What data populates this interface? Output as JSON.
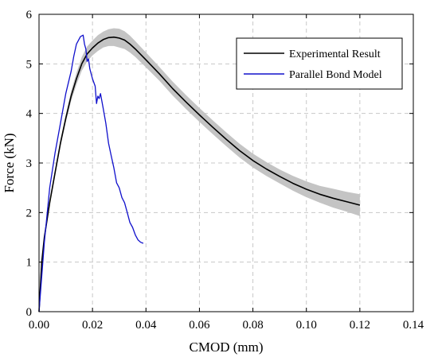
{
  "chart_data": {
    "type": "line",
    "xlabel": "CMOD (mm)",
    "ylabel": "Force (kN)",
    "xlim": [
      0,
      0.14
    ],
    "ylim": [
      0,
      6
    ],
    "xticks": [
      0,
      0.02,
      0.04,
      0.06,
      0.08,
      0.1,
      0.12,
      0.14
    ],
    "yticks": [
      0,
      1,
      2,
      3,
      4,
      5,
      6
    ],
    "xtick_labels": [
      "0.00",
      "0.02",
      "0.04",
      "0.06",
      "0.08",
      "0.10",
      "0.12",
      "0.14"
    ],
    "ytick_labels": [
      "0",
      "1",
      "2",
      "3",
      "4",
      "5",
      "6"
    ],
    "grid": true,
    "grid_style": "dashed",
    "legend_position": "top-right",
    "series": [
      {
        "name": "Experimental Result",
        "color": "#000000",
        "band_color": "#c4c4c4",
        "x": [
          0,
          0.001,
          0.002,
          0.004,
          0.006,
          0.008,
          0.01,
          0.012,
          0.014,
          0.016,
          0.018,
          0.02,
          0.022,
          0.024,
          0.026,
          0.028,
          0.03,
          0.032,
          0.034,
          0.036,
          0.04,
          0.045,
          0.05,
          0.055,
          0.06,
          0.065,
          0.07,
          0.075,
          0.08,
          0.085,
          0.09,
          0.095,
          0.1,
          0.105,
          0.11,
          0.115,
          0.12
        ],
        "y": [
          0,
          1.0,
          1.5,
          2.2,
          2.8,
          3.4,
          3.9,
          4.35,
          4.7,
          5.0,
          5.2,
          5.32,
          5.42,
          5.49,
          5.53,
          5.54,
          5.52,
          5.48,
          5.4,
          5.3,
          5.08,
          4.8,
          4.5,
          4.23,
          3.97,
          3.72,
          3.48,
          3.25,
          3.05,
          2.88,
          2.73,
          2.59,
          2.47,
          2.37,
          2.29,
          2.22,
          2.15
        ],
        "band_halfwidth": [
          0,
          0.05,
          0.06,
          0.06,
          0.06,
          0.07,
          0.08,
          0.1,
          0.12,
          0.14,
          0.15,
          0.15,
          0.16,
          0.16,
          0.17,
          0.18,
          0.19,
          0.18,
          0.17,
          0.16,
          0.15,
          0.14,
          0.14,
          0.14,
          0.14,
          0.14,
          0.14,
          0.14,
          0.14,
          0.14,
          0.14,
          0.15,
          0.16,
          0.17,
          0.19,
          0.2,
          0.22
        ]
      },
      {
        "name": "Parallel Bond Model",
        "color": "#1010cc",
        "x": [
          0,
          0.002,
          0.004,
          0.006,
          0.008,
          0.01,
          0.012,
          0.013,
          0.014,
          0.0155,
          0.0165,
          0.017,
          0.0175,
          0.018,
          0.0185,
          0.019,
          0.02,
          0.021,
          0.0215,
          0.022,
          0.0225,
          0.023,
          0.024,
          0.025,
          0.026,
          0.027,
          0.028,
          0.029,
          0.03,
          0.031,
          0.032,
          0.033,
          0.034,
          0.035,
          0.036,
          0.037,
          0.038,
          0.039
        ],
        "y": [
          0,
          1.4,
          2.5,
          3.2,
          3.8,
          4.4,
          4.85,
          5.15,
          5.4,
          5.55,
          5.58,
          5.4,
          5.3,
          5.05,
          5.1,
          4.9,
          4.7,
          4.55,
          4.2,
          4.35,
          4.3,
          4.4,
          4.1,
          3.8,
          3.4,
          3.15,
          2.9,
          2.6,
          2.5,
          2.3,
          2.2,
          2.0,
          1.8,
          1.7,
          1.55,
          1.45,
          1.4,
          1.38
        ]
      }
    ]
  }
}
